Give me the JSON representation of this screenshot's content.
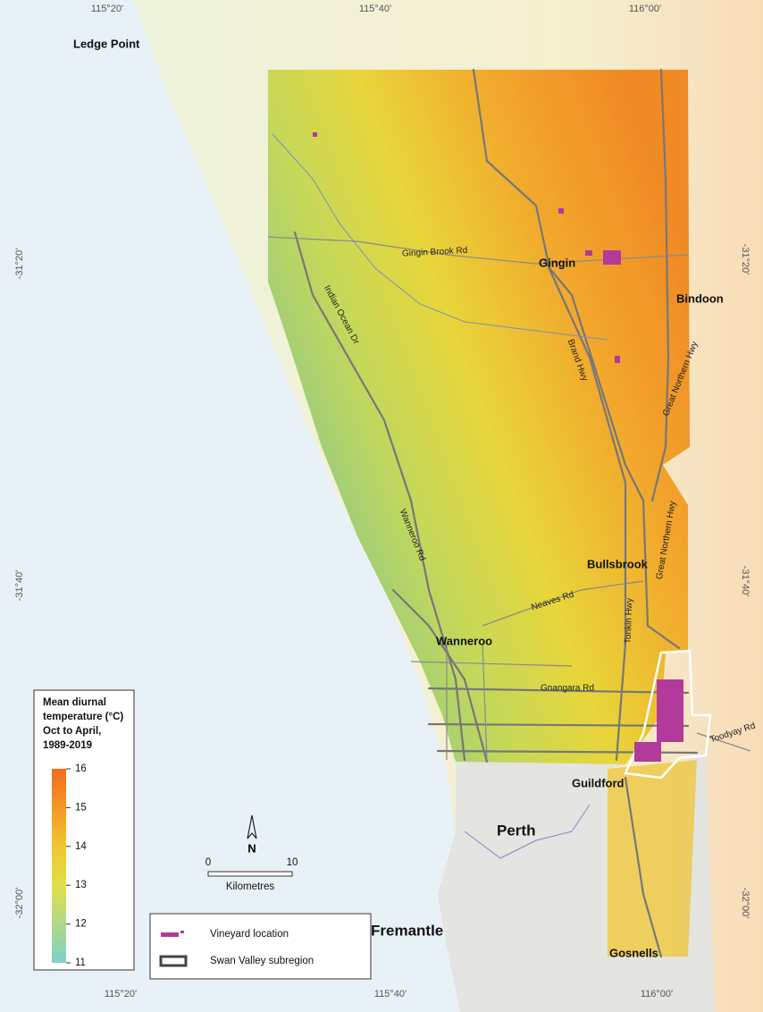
{
  "graticule": {
    "top": [
      "115°20'",
      "115°40'",
      "116°00'"
    ],
    "bottom": [
      "115°20'",
      "115°40'",
      "116°00'"
    ],
    "left": [
      "-31°20'",
      "-31°40'",
      "-32°00'"
    ],
    "right": [
      "-31°20'",
      "-31°40'",
      "-32°00'"
    ]
  },
  "places": [
    "Ledge Point",
    "Gingin",
    "Bindoon",
    "Bullsbrook",
    "Wanneroo",
    "Guildford",
    "Perth",
    "Fremantle",
    "Gosnells"
  ],
  "roads": [
    "Gingin Brook Rd",
    "Indian Ocean Dr",
    "Brand Hwy",
    "Great Northern Hwy",
    "Great Northern Hwy",
    "Wanneroo Rd",
    "Neaves Rd",
    "Tonkin Hwy",
    "Gnangara Rd",
    "Toodyay Rd"
  ],
  "temperature_legend": {
    "title": [
      "Mean diurnal",
      "temperature (°C)",
      "Oct to April,",
      "1989-2019"
    ],
    "ticks": [
      16,
      15,
      14,
      13,
      12,
      11
    ]
  },
  "north_arrow": "N",
  "scale_bar": {
    "ticks": [
      "0",
      "10"
    ],
    "unit": "Kilometres"
  },
  "legend": [
    "Vineyard location",
    "Swan Valley subregion"
  ]
}
